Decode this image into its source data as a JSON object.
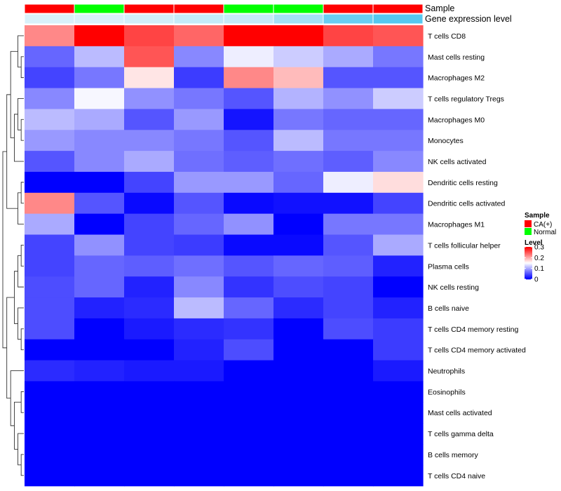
{
  "chart_data": {
    "type": "heatmap",
    "annotation_labels": {
      "sample": "Sample",
      "expression": "Gene expression level"
    },
    "sample_groups": [
      "CA(+)",
      "Normal",
      "CA(+)",
      "CA(+)",
      "Normal",
      "Normal",
      "CA(+)",
      "CA(+)"
    ],
    "gene_expression_level": [
      0.08,
      0.08,
      0.1,
      0.14,
      0.14,
      0.24,
      0.42,
      0.48
    ],
    "rows": [
      {
        "name": "T cells CD8",
        "values": [
          0.22,
          0.3,
          0.26,
          0.24,
          0.3,
          0.3,
          0.26,
          0.25
        ]
      },
      {
        "name": "Mast cells resting",
        "values": [
          0.06,
          0.11,
          0.25,
          0.08,
          0.14,
          0.12,
          0.1,
          0.07
        ]
      },
      {
        "name": "Macrophages M2",
        "values": [
          0.04,
          0.07,
          0.165,
          0.035,
          0.22,
          0.19,
          0.05,
          0.05
        ]
      },
      {
        "name": "T cells regulatory  Tregs",
        "values": [
          0.08,
          0.145,
          0.085,
          0.07,
          0.05,
          0.105,
          0.085,
          0.12
        ]
      },
      {
        "name": "Macrophages M0",
        "values": [
          0.11,
          0.1,
          0.05,
          0.09,
          0.012,
          0.07,
          0.06,
          0.06
        ]
      },
      {
        "name": "Monocytes",
        "values": [
          0.09,
          0.08,
          0.08,
          0.07,
          0.05,
          0.11,
          0.07,
          0.07
        ]
      },
      {
        "name": "NK cells activated",
        "values": [
          0.05,
          0.08,
          0.1,
          0.065,
          0.055,
          0.065,
          0.055,
          0.08
        ]
      },
      {
        "name": "Dendritic cells resting",
        "values": [
          0.0,
          0.0,
          0.04,
          0.09,
          0.09,
          0.06,
          0.14,
          0.17
        ]
      },
      {
        "name": "Dendritic cells activated",
        "values": [
          0.22,
          0.05,
          0.005,
          0.05,
          0.005,
          0.01,
          0.01,
          0.04
        ]
      },
      {
        "name": "Macrophages M1",
        "values": [
          0.1,
          0.0,
          0.04,
          0.06,
          0.085,
          0.0,
          0.07,
          0.07
        ]
      },
      {
        "name": "T cells follicular helper",
        "values": [
          0.04,
          0.085,
          0.04,
          0.035,
          0.005,
          0.005,
          0.05,
          0.1
        ]
      },
      {
        "name": "Plasma cells",
        "values": [
          0.04,
          0.06,
          0.055,
          0.065,
          0.05,
          0.06,
          0.055,
          0.02
        ]
      },
      {
        "name": "NK cells resting",
        "values": [
          0.045,
          0.06,
          0.02,
          0.08,
          0.03,
          0.045,
          0.04,
          0.0
        ]
      },
      {
        "name": "B cells naive",
        "values": [
          0.045,
          0.02,
          0.025,
          0.11,
          0.06,
          0.025,
          0.04,
          0.02
        ]
      },
      {
        "name": "T cells CD4 memory resting",
        "values": [
          0.045,
          0.0,
          0.015,
          0.025,
          0.03,
          0.0,
          0.045,
          0.035
        ]
      },
      {
        "name": "T cells CD4 memory activated",
        "values": [
          0.0,
          0.0,
          0.0,
          0.02,
          0.045,
          0.0,
          0.0,
          0.035
        ]
      },
      {
        "name": "Neutrophils",
        "values": [
          0.025,
          0.02,
          0.015,
          0.015,
          0.0,
          0.0,
          0.0,
          0.015
        ]
      },
      {
        "name": "Eosinophils",
        "values": [
          0,
          0,
          0,
          0,
          0,
          0,
          0,
          0
        ]
      },
      {
        "name": "Mast cells activated",
        "values": [
          0,
          0,
          0,
          0,
          0,
          0,
          0,
          0
        ]
      },
      {
        "name": "T cells gamma delta",
        "values": [
          0,
          0,
          0,
          0,
          0,
          0,
          0,
          0
        ]
      },
      {
        "name": "B cells memory",
        "values": [
          0,
          0,
          0,
          0,
          0,
          0,
          0,
          0
        ]
      },
      {
        "name": "T cells CD4 naive",
        "values": [
          0,
          0,
          0,
          0,
          0,
          0,
          0,
          0
        ]
      }
    ],
    "color_scale": {
      "low": "#0000ff",
      "mid": "#ffffff",
      "high": "#ff0000",
      "min": 0,
      "max": 0.3
    },
    "sample_colors": {
      "CA(+)": "#ff0000",
      "Normal": "#00ff00"
    },
    "expression_colors": {
      "low": "#d9f1fa",
      "high": "#55c8f0"
    },
    "legend": {
      "sample_title": "Sample",
      "sample_entries": [
        "CA(+)",
        "Normal"
      ],
      "level_title": "Level",
      "level_ticks": [
        "0.3",
        "0.2",
        "0.1",
        "0"
      ],
      "level_tick_values": [
        0.3,
        0.2,
        0.1,
        0
      ],
      "position": "right"
    }
  }
}
